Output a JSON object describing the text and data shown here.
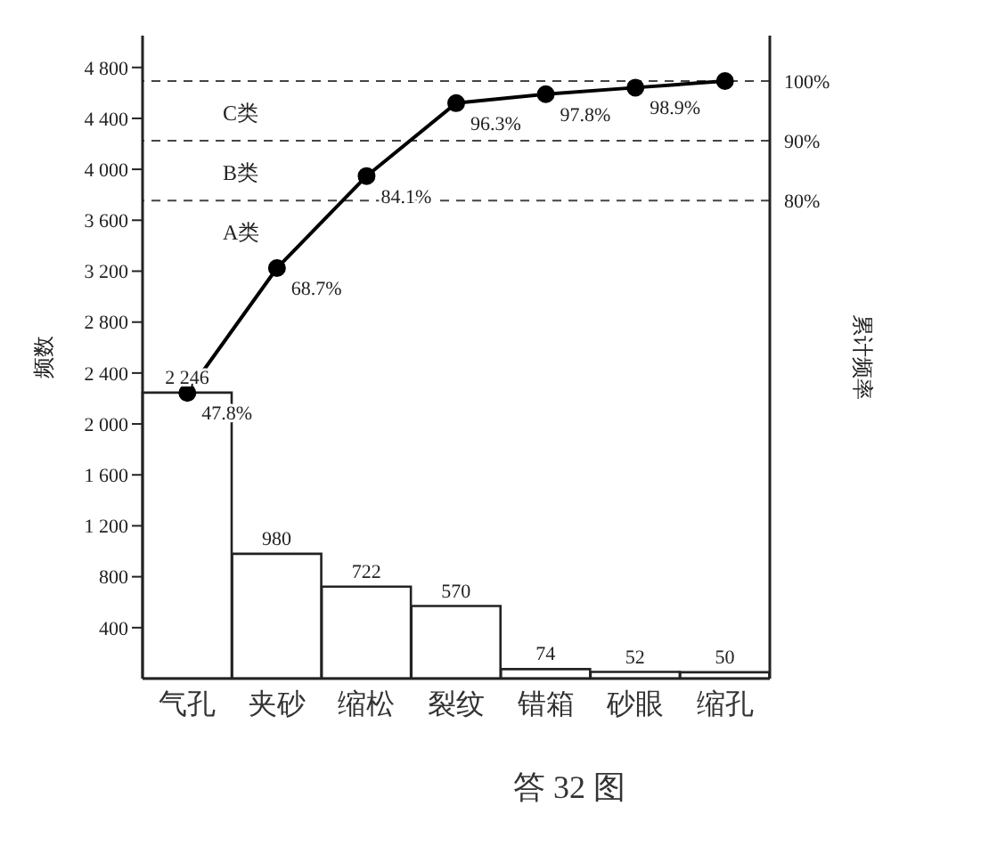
{
  "chart_data": {
    "type": "bar",
    "title": "答 32 图",
    "ylabel": "频数",
    "y2label": "累计频率",
    "categories": [
      "气孔",
      "夹砂",
      "缩松",
      "裂纹",
      "错箱",
      "砂眼",
      "缩孔"
    ],
    "values": [
      2246,
      980,
      722,
      570,
      74,
      52,
      50
    ],
    "color": "#ffffff",
    "value_labels": [
      "2 246",
      "980",
      "722",
      "570",
      "74",
      "52",
      "50"
    ],
    "series": [
      {
        "type": "line",
        "axis": "y2",
        "color": "#000000",
        "values": [
          47.8,
          68.7,
          84.1,
          96.3,
          97.8,
          98.9,
          100
        ],
        "value_labels": [
          "47.8%",
          "68.7%",
          "84.1%",
          "96.3%",
          "97.8%",
          "98.9%",
          null
        ]
      }
    ],
    "ylim": [
      0,
      5050
    ],
    "yticks": [
      {
        "value": 400,
        "label": "400"
      },
      {
        "value": 800,
        "label": "800"
      },
      {
        "value": 1200,
        "label": "1 200"
      },
      {
        "value": 1600,
        "label": "1 600"
      },
      {
        "value": 2000,
        "label": "2 000"
      },
      {
        "value": 2400,
        "label": "2 400"
      },
      {
        "value": 2800,
        "label": "2 800"
      },
      {
        "value": 3200,
        "label": "3 200"
      },
      {
        "value": 3600,
        "label": "3 600"
      },
      {
        "value": 4000,
        "label": "4 000"
      },
      {
        "value": 4400,
        "label": "4 400"
      },
      {
        "value": 4800,
        "label": "4 800"
      }
    ],
    "y2lim": [
      0,
      107.6
    ],
    "y2ticks": [
      {
        "value": 80,
        "label": "80%"
      },
      {
        "value": 90,
        "label": "90%"
      },
      {
        "value": 100,
        "label": "100%"
      }
    ],
    "ref_lines": [
      {
        "axis": "y2",
        "value": 80,
        "line_style": "dashed",
        "label": "A类"
      },
      {
        "axis": "y2",
        "value": 90,
        "line_style": "dashed",
        "label": "B类"
      },
      {
        "axis": "y2",
        "value": 100,
        "line_style": "dashed",
        "label": "C类"
      }
    ],
    "marker": "circle"
  }
}
